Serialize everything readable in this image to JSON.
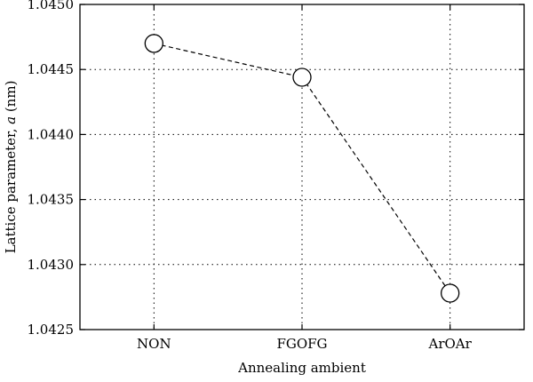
{
  "chart_data": {
    "type": "line",
    "title": "",
    "xlabel": "Annealing ambient",
    "ylabel_prefix": "Lattice parameter, ",
    "ylabel_var": "a",
    "ylabel_suffix": " (nm)",
    "categories": [
      "NON",
      "FGOFG",
      "ArOAr"
    ],
    "series": [
      {
        "values": [
          1.0447,
          1.04444,
          1.04278
        ]
      }
    ],
    "ylim": [
      1.0425,
      1.045
    ],
    "yticks": [
      1.0425,
      1.043,
      1.0435,
      1.044,
      1.0445,
      1.045
    ],
    "ytick_labels": [
      "1.0425",
      "1.0430",
      "1.0435",
      "1.0440",
      "1.0445",
      "1.0450"
    ],
    "grid": true,
    "line_style": "dashed",
    "marker": "open-circle",
    "color": "#000000"
  }
}
